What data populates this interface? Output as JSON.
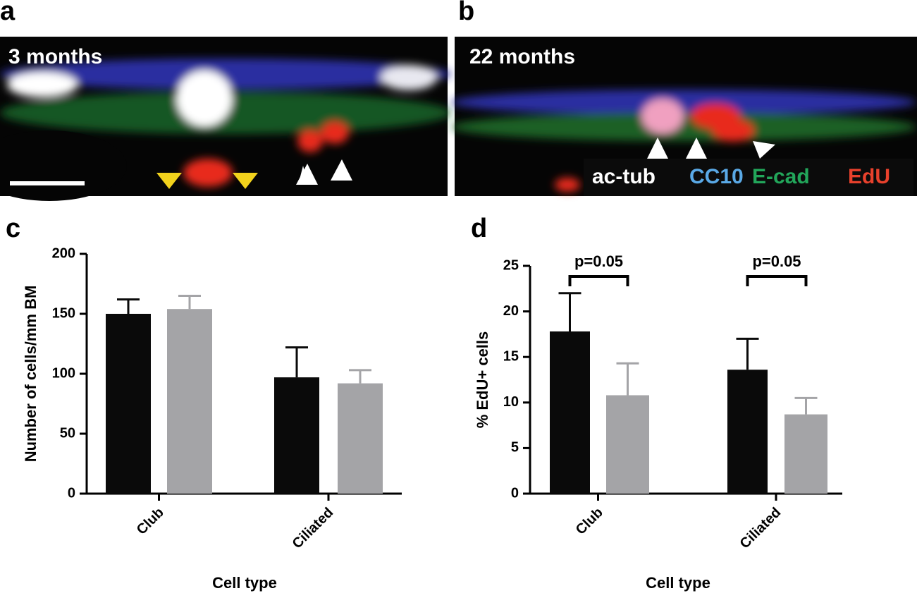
{
  "panel_labels": [
    "a",
    "b",
    "c",
    "d"
  ],
  "images": [
    {
      "caption": "3 months"
    },
    {
      "caption": "22 months",
      "stain_labels": [
        {
          "text": "ac-tub",
          "color": "#ffffff"
        },
        {
          "text": "CC10",
          "color": "#5aa9e6"
        },
        {
          "text": "E-cad",
          "color": "#22a65a"
        },
        {
          "text": "EdU",
          "color": "#e8412c"
        }
      ]
    }
  ],
  "chart_data": [
    {
      "type": "bar",
      "ylabel": "Number of cells/mm BM",
      "xlabel": "Cell type",
      "categories": [
        "Club",
        "Ciliated"
      ],
      "series": [
        {
          "color": "#0a0a0a",
          "values": [
            150,
            97
          ],
          "errors": [
            12,
            25
          ]
        },
        {
          "color": "#a4a4a7",
          "values": [
            154,
            92
          ],
          "errors": [
            11,
            11
          ]
        }
      ],
      "ylim": [
        0,
        200
      ],
      "yticks": [
        0,
        50,
        100,
        150,
        200
      ]
    },
    {
      "type": "bar",
      "ylabel": "% EdU+ cells",
      "xlabel": "Cell type",
      "categories": [
        "Club",
        "Ciliated"
      ],
      "series": [
        {
          "color": "#0a0a0a",
          "values": [
            17.8,
            13.6
          ],
          "errors": [
            4.2,
            3.4
          ]
        },
        {
          "color": "#a4a4a7",
          "values": [
            10.8,
            8.7
          ],
          "errors": [
            3.5,
            1.8
          ]
        }
      ],
      "annotations": [
        "p=0.05",
        "p=0.05"
      ],
      "ylim": [
        0,
        25
      ],
      "yticks": [
        0,
        5,
        10,
        15,
        20,
        25
      ]
    }
  ]
}
